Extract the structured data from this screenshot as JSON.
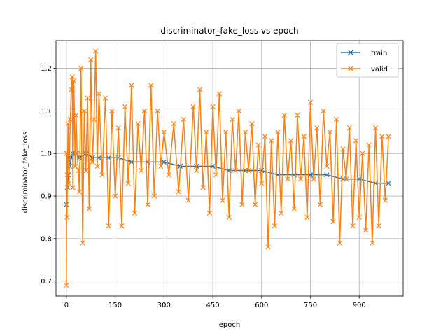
{
  "chart_data": {
    "type": "line",
    "title": "discriminator_fake_loss vs epoch",
    "xlabel": "epoch",
    "ylabel": "discriminator_fake_loss",
    "xlim": [
      -32,
      1035
    ],
    "ylim": [
      0.665,
      1.265
    ],
    "xticks": [
      0,
      150,
      300,
      450,
      600,
      750,
      900
    ],
    "yticks": [
      0.7,
      0.8,
      0.9,
      1.0,
      1.1,
      1.2
    ],
    "xtick_labels": [
      "0",
      "150",
      "300",
      "450",
      "600",
      "750",
      "900"
    ],
    "ytick_labels": [
      "0.7",
      "0.8",
      "0.9",
      "1.0",
      "1.1",
      "1.2"
    ],
    "grid": true,
    "legend_position": "top-right",
    "marker": "x",
    "series": [
      {
        "name": "train",
        "color": "#1f77b4",
        "x": [
          0,
          3,
          6,
          10,
          15,
          20,
          30,
          40,
          60,
          80,
          100,
          130,
          160,
          200,
          250,
          300,
          350,
          400,
          450,
          500,
          550,
          600,
          650,
          700,
          750,
          800,
          850,
          900,
          950,
          990
        ],
        "y": [
          0.88,
          0.92,
          0.95,
          0.97,
          0.99,
          1.0,
          1.0,
          0.99,
          1.0,
          0.99,
          0.99,
          0.99,
          0.99,
          0.98,
          0.98,
          0.98,
          0.97,
          0.97,
          0.97,
          0.96,
          0.96,
          0.96,
          0.95,
          0.95,
          0.95,
          0.95,
          0.94,
          0.94,
          0.93,
          0.93
        ]
      },
      {
        "name": "valid",
        "color": "#ff7f0e",
        "x": [
          0,
          1,
          2,
          3,
          5,
          8,
          12,
          15,
          18,
          20,
          23,
          27,
          30,
          33,
          37,
          40,
          45,
          50,
          55,
          60,
          65,
          70,
          75,
          80,
          85,
          90,
          95,
          100,
          110,
          120,
          130,
          140,
          150,
          160,
          170,
          180,
          190,
          200,
          210,
          220,
          230,
          240,
          250,
          260,
          270,
          280,
          290,
          300,
          315,
          330,
          345,
          360,
          375,
          390,
          400,
          410,
          420,
          430,
          440,
          450,
          460,
          470,
          480,
          490,
          500,
          510,
          520,
          530,
          540,
          550,
          560,
          570,
          580,
          590,
          600,
          610,
          620,
          630,
          640,
          650,
          660,
          670,
          680,
          690,
          700,
          710,
          720,
          730,
          740,
          750,
          760,
          770,
          780,
          790,
          800,
          810,
          820,
          830,
          840,
          850,
          860,
          870,
          880,
          890,
          900,
          910,
          920,
          930,
          940,
          950,
          960,
          970,
          980,
          990
        ],
        "y": [
          0.69,
          1.0,
          0.85,
          0.95,
          1.07,
          0.93,
          1.08,
          1.15,
          1.18,
          0.92,
          1.17,
          0.97,
          1.09,
          1.0,
          0.96,
          0.91,
          1.2,
          0.79,
          1.1,
          0.96,
          1.13,
          0.87,
          1.22,
          0.98,
          1.08,
          1.24,
          0.97,
          1.14,
          0.95,
          1.13,
          0.83,
          1.1,
          0.9,
          1.06,
          0.83,
          1.11,
          0.93,
          1.16,
          0.86,
          1.07,
          0.96,
          1.1,
          0.88,
          1.16,
          0.9,
          1.1,
          0.97,
          1.05,
          0.95,
          1.07,
          0.91,
          1.08,
          0.89,
          1.11,
          0.96,
          1.15,
          0.92,
          1.05,
          0.86,
          1.11,
          0.95,
          1.14,
          0.89,
          1.05,
          0.85,
          1.08,
          0.96,
          1.1,
          0.88,
          1.05,
          0.96,
          1.07,
          0.88,
          1.02,
          0.93,
          1.04,
          0.78,
          1.03,
          0.83,
          1.05,
          0.86,
          1.09,
          0.94,
          1.03,
          0.87,
          1.09,
          0.94,
          1.04,
          0.85,
          1.12,
          0.94,
          1.06,
          0.88,
          1.1,
          0.97,
          1.05,
          0.84,
          1.08,
          0.79,
          1.01,
          0.94,
          1.06,
          0.83,
          1.03,
          0.85,
          1.0,
          0.82,
          1.02,
          0.79,
          1.06,
          0.83,
          1.04,
          0.89,
          1.04
        ]
      }
    ]
  }
}
